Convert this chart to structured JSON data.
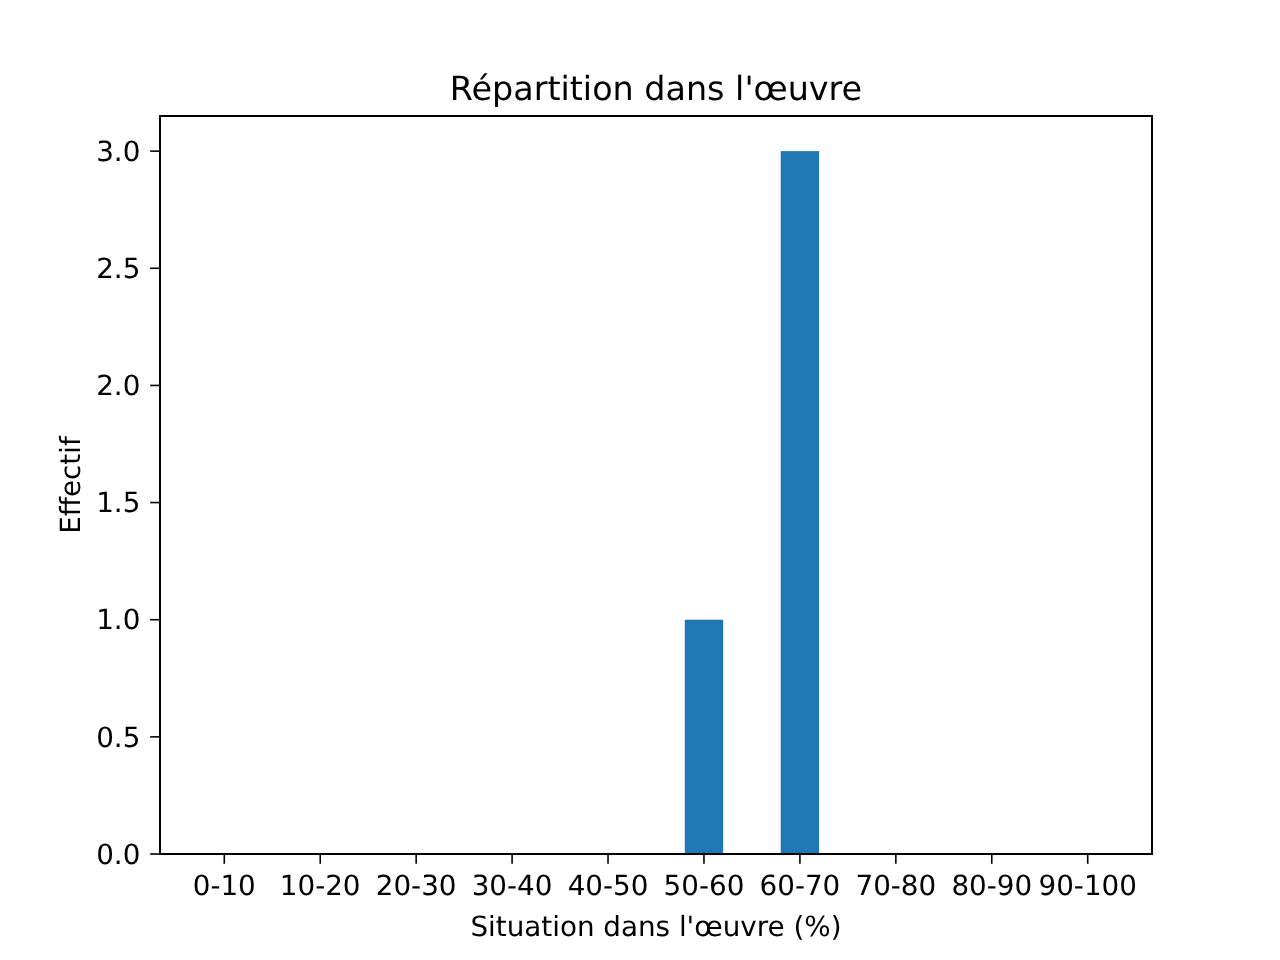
{
  "chart_data": {
    "type": "bar",
    "title": "Répartition dans l'œuvre",
    "xlabel": "Situation dans l'œuvre (%)",
    "ylabel": "Effectif",
    "categories": [
      "0-10",
      "10-20",
      "20-30",
      "30-40",
      "40-50",
      "50-60",
      "60-70",
      "70-80",
      "80-90",
      "90-100"
    ],
    "values": [
      0,
      0,
      0,
      0,
      0,
      1,
      3,
      0,
      0,
      0
    ],
    "color": "#1f77b4",
    "ylim": [
      0,
      3.15
    ],
    "yticks": [
      {
        "value": 0,
        "label": "0.0"
      },
      {
        "value": 0.5,
        "label": "0.5"
      },
      {
        "value": 1,
        "label": "1.0"
      },
      {
        "value": 1.5,
        "label": "1.5"
      },
      {
        "value": 2,
        "label": "2.0"
      },
      {
        "value": 2.5,
        "label": "2.5"
      },
      {
        "value": 3,
        "label": "3.0"
      }
    ],
    "grid": false
  }
}
